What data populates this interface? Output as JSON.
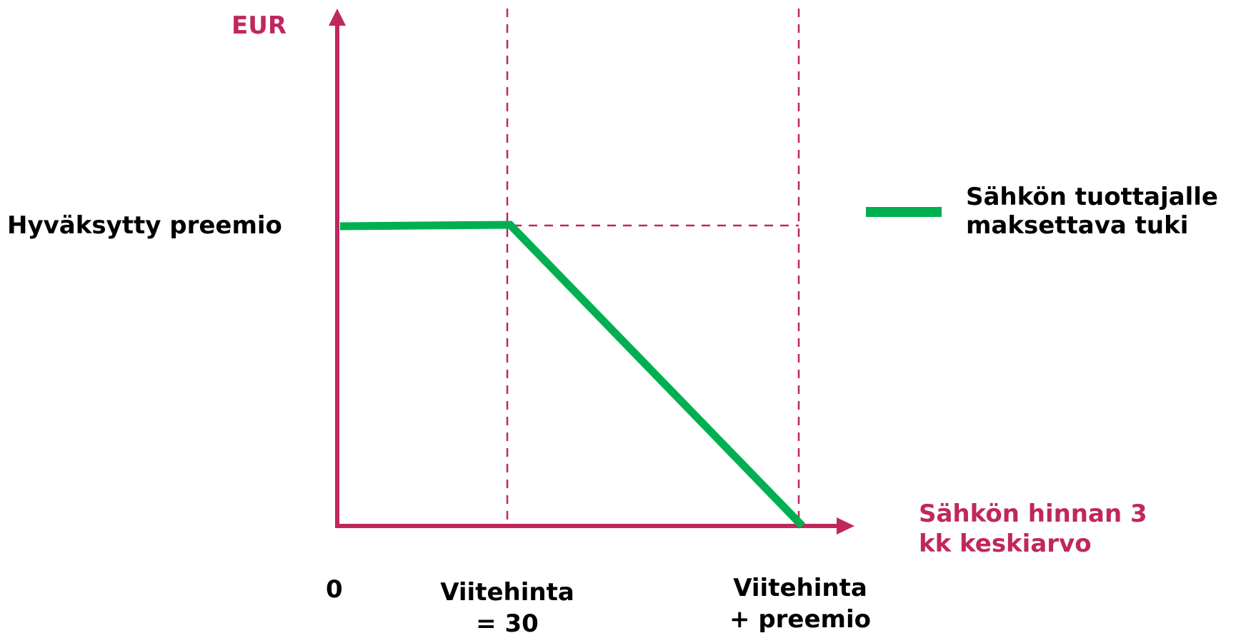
{
  "diagram": {
    "y_axis_label": "EUR",
    "x_axis_label_line1": "Sähkön hinnan 3",
    "x_axis_label_line2": "kk keskiarvo",
    "premium_label": "Hyväksytty preemio",
    "origin_label": "0",
    "reference_price_line1": "Viitehinta",
    "reference_price_line2": "= 30",
    "reference_plus_premium_line1": "Viitehinta",
    "reference_plus_premium_line2": "+ preemio",
    "legend": {
      "line1": "Sähkön tuottajalle",
      "line2": "maksettava tuki",
      "color": "#00B050"
    },
    "colors": {
      "axis": "#C0275E",
      "support_line": "#00B050",
      "text": "#000000"
    }
  }
}
